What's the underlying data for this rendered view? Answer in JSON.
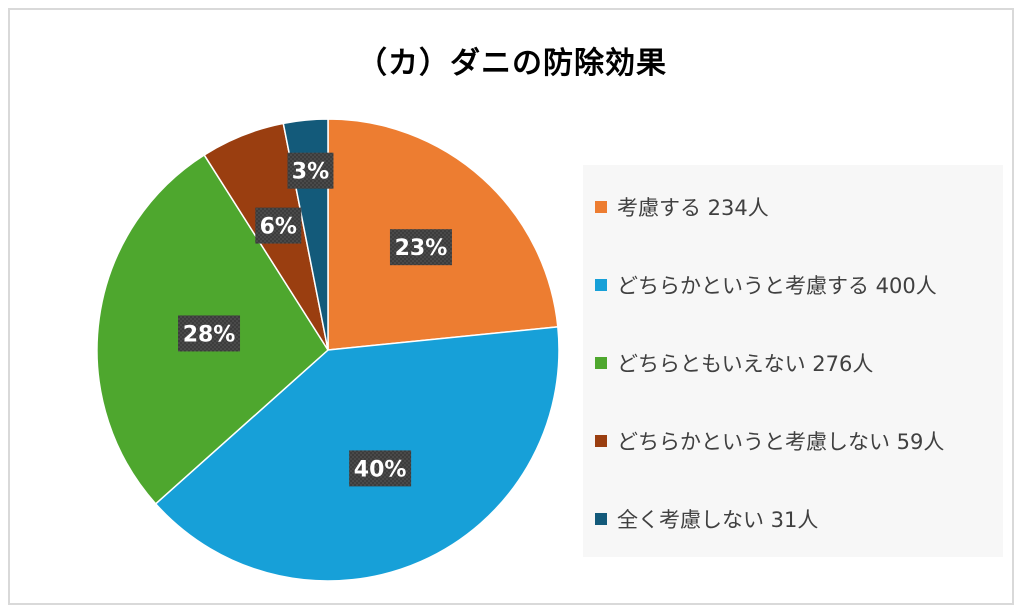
{
  "chart_data": {
    "type": "pie",
    "title": "（カ）ダニの防除効果",
    "legend_position": "right",
    "slices": [
      {
        "label": "考慮する 234人",
        "value": 234,
        "percent_label": "23%",
        "color": "#ED7D31"
      },
      {
        "label": "どちらかというと考慮する 400人",
        "value": 400,
        "percent_label": "40%",
        "color": "#17A0D8"
      },
      {
        "label": "どちらともいえない 276人",
        "value": 276,
        "percent_label": "28%",
        "color": "#4EA72E"
      },
      {
        "label": "どちらかというと考慮しない 59人",
        "value": 59,
        "percent_label": "6%",
        "color": "#9A3E10"
      },
      {
        "label": "全く考慮しない 31人",
        "value": 31,
        "percent_label": "3%",
        "color": "#135A7A"
      }
    ]
  }
}
